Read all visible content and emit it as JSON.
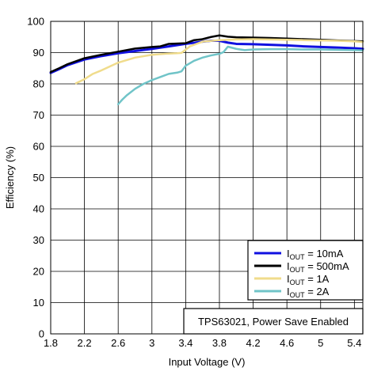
{
  "chart_data": {
    "type": "line",
    "xlabel": "Input Voltage (V)",
    "ylabel": "Efficiency (%)",
    "xlim": [
      1.8,
      5.5
    ],
    "ylim": [
      0,
      100
    ],
    "x_ticks": [
      "1.8",
      "2.2",
      "2.6",
      "3",
      "3.4",
      "3.8",
      "4.2",
      "4.6",
      "5",
      "5.4"
    ],
    "x_tick_values": [
      1.8,
      2.2,
      2.6,
      3.0,
      3.4,
      3.8,
      4.2,
      4.6,
      5.0,
      5.4
    ],
    "y_ticks": [
      "0",
      "10",
      "20",
      "30",
      "40",
      "50",
      "60",
      "70",
      "80",
      "90",
      "100"
    ],
    "y_tick_values": [
      0,
      10,
      20,
      30,
      40,
      50,
      60,
      70,
      80,
      90,
      100
    ],
    "grid": true,
    "legend_position": "lower-right",
    "annotation": "TPS63021, Power Save Enabled",
    "series": [
      {
        "name": "IOUT = 10mA",
        "label_main": "I",
        "label_sub": "OUT",
        "label_rest": " = 10mA",
        "color": "#1010e0",
        "width": 3,
        "x": [
          1.8,
          1.9,
          2.0,
          2.2,
          2.4,
          2.6,
          2.8,
          3.0,
          3.2,
          3.4,
          3.6,
          3.7,
          3.8,
          3.9,
          4.0,
          4.2,
          4.4,
          4.6,
          4.8,
          5.0,
          5.2,
          5.4,
          5.5
        ],
        "y": [
          83.5,
          84.7,
          86.0,
          87.8,
          88.9,
          89.8,
          90.5,
          91.2,
          92.0,
          92.8,
          93.5,
          93.8,
          93.8,
          93.2,
          92.8,
          92.7,
          92.5,
          92.3,
          92.0,
          91.8,
          91.6,
          91.4,
          91.2
        ]
      },
      {
        "name": "IOUT = 500mA",
        "label_main": "I",
        "label_sub": "OUT",
        "label_rest": " = 500mA",
        "color": "#000000",
        "width": 2.5,
        "x": [
          1.8,
          1.9,
          2.0,
          2.2,
          2.4,
          2.6,
          2.8,
          3.0,
          3.1,
          3.2,
          3.4,
          3.5,
          3.6,
          3.7,
          3.8,
          3.9,
          4.0,
          4.2,
          4.4,
          4.6,
          4.8,
          5.0,
          5.2,
          5.4,
          5.5
        ],
        "y": [
          83.8,
          85.0,
          86.3,
          88.2,
          89.3,
          90.3,
          91.3,
          91.8,
          92.0,
          92.8,
          93.0,
          94.0,
          94.3,
          95.0,
          95.5,
          95.1,
          94.9,
          94.8,
          94.7,
          94.5,
          94.3,
          94.1,
          93.9,
          93.7,
          93.6
        ]
      },
      {
        "name": "IOUT = 1A",
        "label_main": "I",
        "label_sub": "OUT",
        "label_rest": " = 1A",
        "color": "#f0dc8c",
        "width": 2.5,
        "x": [
          2.1,
          2.2,
          2.3,
          2.4,
          2.6,
          2.8,
          3.0,
          3.2,
          3.3,
          3.35,
          3.45,
          3.6,
          3.8,
          4.0,
          4.2,
          4.4,
          4.6,
          4.8,
          5.0,
          5.2,
          5.4,
          5.5
        ],
        "y": [
          80.2,
          81.5,
          83.2,
          84.3,
          86.8,
          88.4,
          89.3,
          89.7,
          89.8,
          89.9,
          92.0,
          93.5,
          94.0,
          94.2,
          94.3,
          94.2,
          94.1,
          94.0,
          93.9,
          93.8,
          93.6,
          93.4
        ]
      },
      {
        "name": "IOUT = 2A",
        "label_main": "I",
        "label_sub": "OUT",
        "label_rest": " = 2A",
        "color": "#70c4c8",
        "width": 2.5,
        "x": [
          2.6,
          2.65,
          2.7,
          2.8,
          2.9,
          3.0,
          3.1,
          3.2,
          3.3,
          3.35,
          3.4,
          3.5,
          3.6,
          3.7,
          3.8,
          3.85,
          3.9,
          4.0,
          4.1,
          4.2,
          4.4,
          4.6,
          4.8,
          5.0,
          5.2,
          5.4,
          5.5
        ],
        "y": [
          73.5,
          75.0,
          76.3,
          78.4,
          80.0,
          81.2,
          82.2,
          83.2,
          83.6,
          84.0,
          85.8,
          87.4,
          88.4,
          89.1,
          89.6,
          90.2,
          91.9,
          91.2,
          90.8,
          91.0,
          91.1,
          91.1,
          91.0,
          91.0,
          90.9,
          90.8,
          90.7
        ]
      }
    ]
  }
}
